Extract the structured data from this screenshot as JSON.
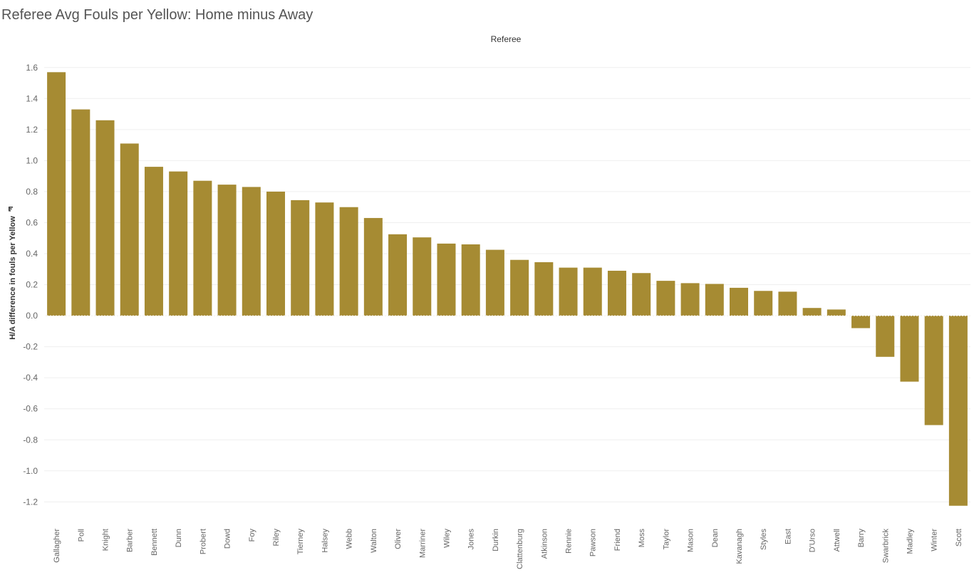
{
  "title": "Referee Avg Fouls per Yellow: Home minus Away",
  "chart_data": {
    "type": "bar",
    "title": "Referee Avg Fouls per Yellow: Home minus Away",
    "column_header": "Referee",
    "xlabel": "",
    "ylabel": "H/A difference in fouls per Yellow",
    "ylim": [
      -1.35,
      1.7
    ],
    "yticks": [
      1.6,
      1.4,
      1.2,
      1.0,
      0.8,
      0.6,
      0.4,
      0.2,
      0.0,
      -0.2,
      -0.4,
      -0.6,
      -0.8,
      -1.0,
      -1.2
    ],
    "ytick_labels": [
      "1.6",
      "1.4",
      "1.2",
      "1.0",
      "0.8",
      "0.6",
      "0.4",
      "0.2",
      "0.0",
      "-0.2",
      "-0.4",
      "-0.6",
      "-0.8",
      "-1.0",
      "-1.2"
    ],
    "grid": true,
    "bar_color": "#A68B33",
    "categories": [
      "Gallagher",
      "Poll",
      "Knight",
      "Barber",
      "Bennett",
      "Dunn",
      "Probert",
      "Dowd",
      "Foy",
      "Riley",
      "Tierney",
      "Halsey",
      "Webb",
      "Walton",
      "Oliver",
      "Marriner",
      "Wiley",
      "Jones",
      "Durkin",
      "Clattenburg",
      "Atkinson",
      "Rennie",
      "Pawson",
      "Friend",
      "Moss",
      "Taylor",
      "Mason",
      "Dean",
      "Kavanagh",
      "Styles",
      "East",
      "D'Urso",
      "Attwell",
      "Barry",
      "Swarbrick",
      "Madley",
      "Winter",
      "Scott"
    ],
    "values": [
      1.57,
      1.33,
      1.26,
      1.11,
      0.96,
      0.93,
      0.87,
      0.845,
      0.83,
      0.8,
      0.745,
      0.73,
      0.7,
      0.63,
      0.525,
      0.505,
      0.465,
      0.46,
      0.425,
      0.36,
      0.345,
      0.31,
      0.31,
      0.29,
      0.275,
      0.225,
      0.21,
      0.205,
      0.18,
      0.16,
      0.155,
      0.05,
      0.04,
      -0.08,
      -0.265,
      -0.425,
      -0.705,
      -1.225
    ]
  }
}
